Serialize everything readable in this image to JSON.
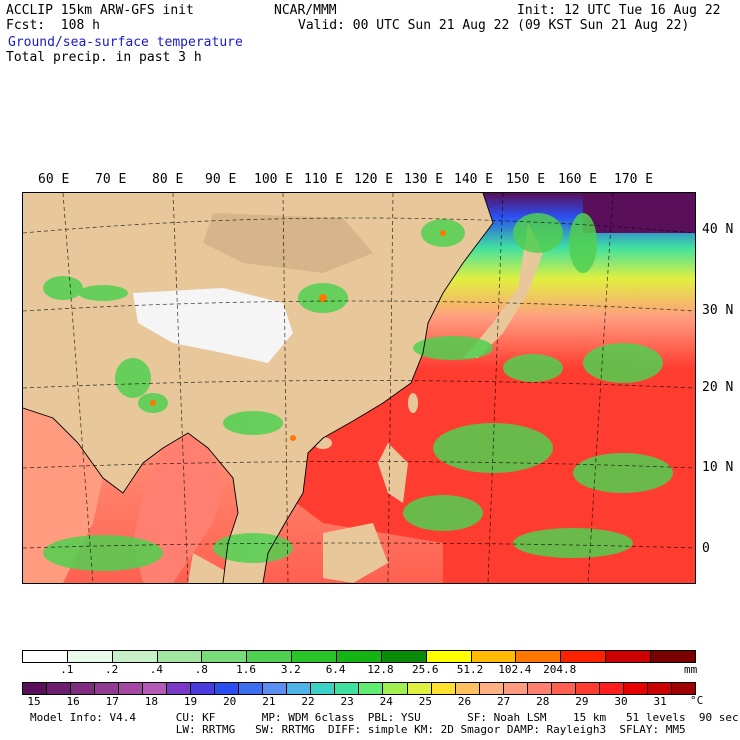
{
  "header": {
    "model": "ACCLIP 15km ARW-GFS init",
    "forecast": "Fcst:  108 h",
    "center": "NCAR/MMM",
    "init": "Init: 12 UTC Tue 16 Aug 22",
    "valid": "Valid: 00 UTC Sun 21 Aug 22 (09 KST Sun 21 Aug 22)",
    "field1": "Ground/sea-surface temperature",
    "field2": "Total precip. in past 3 h"
  },
  "map": {
    "lon_labels": [
      "60 E",
      "70 E",
      "80 E",
      "90 E",
      "100 E",
      "110 E",
      "120 E",
      "130 E",
      "140 E",
      "150 E",
      "160 E",
      "170 E"
    ],
    "lat_labels": [
      "40 N",
      "30 N",
      "20 N",
      "10 N",
      "0"
    ]
  },
  "precip_scale": {
    "colors": [
      "#ffffff",
      "#eafaea",
      "#c8f0c8",
      "#a0e6a0",
      "#78dc78",
      "#50d050",
      "#28c428",
      "#14b414",
      "#0a8c0a",
      "#ffff00",
      "#ffbb00",
      "#ff7700",
      "#ff2200",
      "#cc0000",
      "#7a0000"
    ],
    "ticks": [
      ".1",
      ".2",
      ".4",
      ".8",
      "1.6",
      "3.2",
      "6.4",
      "12.8",
      "25.6",
      "51.2",
      "102.4",
      "204.8"
    ],
    "unit": "mm"
  },
  "temp_scale": {
    "colors": [
      "#5a0f5a",
      "#6e1e6e",
      "#802c80",
      "#923a92",
      "#a448a4",
      "#b45ab4",
      "#7a3ac8",
      "#4a3ae0",
      "#2a4ef0",
      "#3c6ef0",
      "#5a8ef0",
      "#4cb4e6",
      "#3cd2c8",
      "#40e0a0",
      "#60ec70",
      "#a0f050",
      "#e0f040",
      "#ffe030",
      "#ffc060",
      "#ffb080",
      "#ff9c80",
      "#ff8070",
      "#ff6050",
      "#ff3c30",
      "#ff1e1e",
      "#e60000",
      "#c80000",
      "#a00000"
    ],
    "ticks": [
      "15",
      "16",
      "17",
      "18",
      "19",
      "20",
      "21",
      "22",
      "23",
      "24",
      "25",
      "26",
      "27",
      "28",
      "29",
      "30",
      "31"
    ],
    "unit": "°C"
  },
  "footer": {
    "line1": "Model Info: V4.4      CU: KF       MP: WDM 6class  PBL: YSU       SF: Noah LSM    15 km   51 levels  90 sec",
    "line2": "                      LW: RRTMG   SW: RRTMG  DIFF: simple KM: 2D Smagor DAMP: Rayleigh3  SFLAY: MM5"
  }
}
